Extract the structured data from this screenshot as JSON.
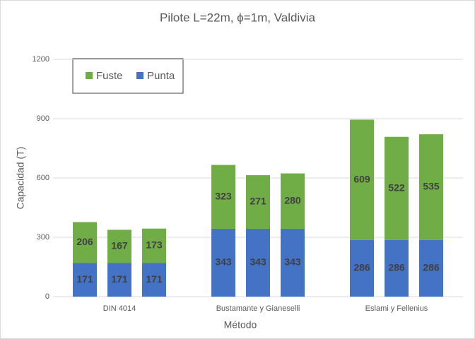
{
  "chart_data": {
    "type": "stacked_bar",
    "title": "Pilote L=22m, ϕ=1m, Valdivia",
    "x_label": "Método",
    "y_label": "Capacidad (T)",
    "categories": [
      null,
      "DIN 4014",
      null,
      null,
      "Bustamante y Gianeselli",
      null,
      null,
      "Eslami y Fellenius",
      null
    ],
    "series": [
      {
        "name": "Punta",
        "color": "#4472c4",
        "values": [
          171,
          171,
          171,
          343,
          343,
          343,
          286,
          286,
          286
        ]
      },
      {
        "name": "Fuste",
        "color": "#70ad47",
        "values": [
          206,
          167,
          173,
          323,
          271,
          280,
          609,
          522,
          535
        ]
      }
    ],
    "ylim": [
      0,
      1200
    ],
    "yticks": [
      0,
      300,
      600,
      900,
      1200
    ],
    "grid": true
  }
}
